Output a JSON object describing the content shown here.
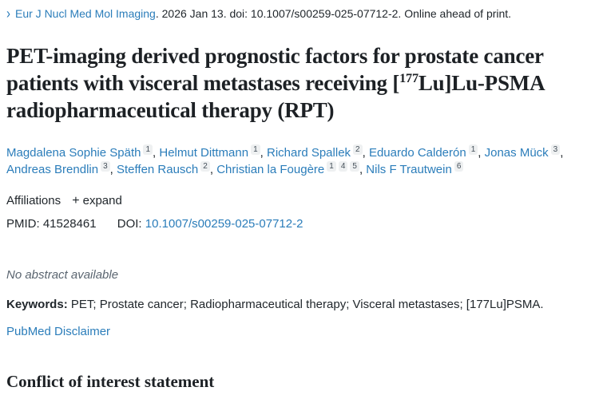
{
  "header": {
    "chevron": "›",
    "journal_link": "Eur J Nucl Med Mol Imaging",
    "citation_rest": ". 2026 Jan 13. doi: 10.1007/s00259-025-07712-2. Online ahead of print."
  },
  "title": {
    "part1": "PET-imaging derived prognostic factors for prostate cancer patients with visceral metastases receiving [",
    "superscript": "177",
    "part2": "Lu]Lu-PSMA radiopharmaceutical therapy (RPT)"
  },
  "authors": [
    {
      "name": "Magdalena Sophie Späth",
      "affiliations": [
        "1"
      ]
    },
    {
      "name": "Helmut Dittmann",
      "affiliations": [
        "1"
      ]
    },
    {
      "name": "Richard Spallek",
      "affiliations": [
        "2"
      ]
    },
    {
      "name": "Eduardo Calderón",
      "affiliations": [
        "1"
      ]
    },
    {
      "name": "Jonas Mück",
      "affiliations": [
        "3"
      ]
    },
    {
      "name": "Andreas Brendlin",
      "affiliations": [
        "3"
      ]
    },
    {
      "name": "Steffen Rausch",
      "affiliations": [
        "2"
      ]
    },
    {
      "name": "Christian la Fougère",
      "affiliations": [
        "1",
        "4",
        "5"
      ]
    },
    {
      "name": "Nils F Trautwein",
      "affiliations": [
        "6"
      ]
    }
  ],
  "affiliations": {
    "label": "Affiliations",
    "plus": "+",
    "expand_label": "expand"
  },
  "ids": {
    "pmid_label": "PMID:",
    "pmid_value": "41528461",
    "doi_label": "DOI:",
    "doi_value": "10.1007/s00259-025-07712-2"
  },
  "abstract": {
    "notice": "No abstract available"
  },
  "keywords": {
    "label": "Keywords:",
    "text": " PET; Prostate cancer; Radiopharmaceutical therapy; Visceral metastases; [177Lu]PSMA."
  },
  "footer_links": {
    "disclaimer": "PubMed Disclaimer"
  },
  "sections": {
    "conflict_heading": "Conflict of interest statement"
  },
  "colors": {
    "link_blue": "#2b7dba",
    "text_dark": "#21272c",
    "muted_gray": "#5a6570",
    "badge_bg": "#eef0f1"
  }
}
